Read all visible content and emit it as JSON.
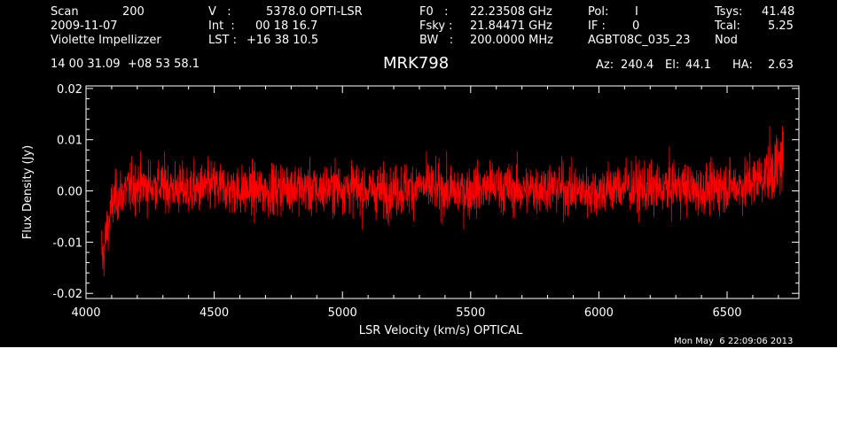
{
  "header": {
    "col1": {
      "scan_label": "Scan",
      "scan_value": "200",
      "date": "2009-11-07",
      "observer": "Violette Impellizzer"
    },
    "col2": {
      "v_label": "V   :",
      "v_value": "5378.0 OPTI-LSR",
      "int_label": "Int  :",
      "int_value": "00 18 16.7",
      "lst_label": "LST :",
      "lst_value": "+16 38 10.5"
    },
    "col3": {
      "f0_label": "F0   :",
      "f0_value": "22.23508 GHz",
      "fsky_label": "Fsky :",
      "fsky_value": "21.84471 GHz",
      "bw_label": "BW   :",
      "bw_value": "200.0000 MHz"
    },
    "col4": {
      "pol_label": "Pol:",
      "pol_value": "I",
      "if_label": "IF :",
      "if_value": "0",
      "project": "AGBT08C_035_23"
    },
    "col5": {
      "tsys_label": "Tsys:",
      "tsys_value": "41.48",
      "tcal_label": "Tcal:",
      "tcal_value": "5.25",
      "mode": "Nod"
    },
    "coords": "14 00 31.09  +08 53 58.1",
    "az_label": "Az:",
    "az_value": "240.4",
    "el_label": "El:",
    "el_value": "44.1",
    "ha_label": "HA:",
    "ha_value": "2.63"
  },
  "timestamp": "Mon May  6 22:09:06 2013",
  "chart_data": {
    "type": "line",
    "title": "MRK798",
    "xlabel": "LSR Velocity (km/s) OPTICAL",
    "ylabel": "Flux Density (Jy)",
    "xlim": [
      4000,
      6780
    ],
    "ylim": [
      -0.021,
      0.0205
    ],
    "xticks": [
      4000,
      4500,
      5000,
      5500,
      6000,
      6500
    ],
    "xtick_labels": [
      "4000",
      "4500",
      "5000",
      "5500",
      "6000",
      "6500"
    ],
    "yticks": [
      -0.02,
      -0.01,
      0.0,
      0.01,
      0.02
    ],
    "ytick_labels": [
      "-0.02",
      "-0.01",
      "0.00",
      "0.01",
      "0.02"
    ],
    "series": [
      {
        "color": "#ff0000",
        "x": [
          4060,
          4065,
          4070,
          4080,
          4090,
          4100,
          4120,
          4150,
          4200,
          4300,
          4400,
          4500,
          4600,
          4700,
          4800,
          4900,
          5000,
          5100,
          5200,
          5300,
          5400,
          5500,
          5600,
          5700,
          5800,
          5900,
          6000,
          6100,
          6200,
          6300,
          6400,
          6500,
          6550,
          6600,
          6650,
          6680,
          6700,
          6710,
          6720
        ],
        "y": [
          -0.011,
          -0.013,
          -0.012,
          -0.008,
          -0.006,
          -0.003,
          -0.001,
          0.0,
          0.001,
          0.001,
          0.0,
          0.001,
          0.0,
          0.0,
          0.001,
          0.0,
          0.001,
          0.0,
          0.0,
          0.001,
          0.0,
          0.0,
          0.001,
          0.0,
          0.001,
          0.0,
          0.0,
          0.001,
          0.0,
          0.001,
          0.0,
          0.001,
          0.001,
          0.002,
          0.003,
          0.004,
          0.005,
          0.006,
          0.007
        ],
        "noise_rms": 0.0035
      }
    ],
    "grid": false,
    "legend": "none"
  }
}
